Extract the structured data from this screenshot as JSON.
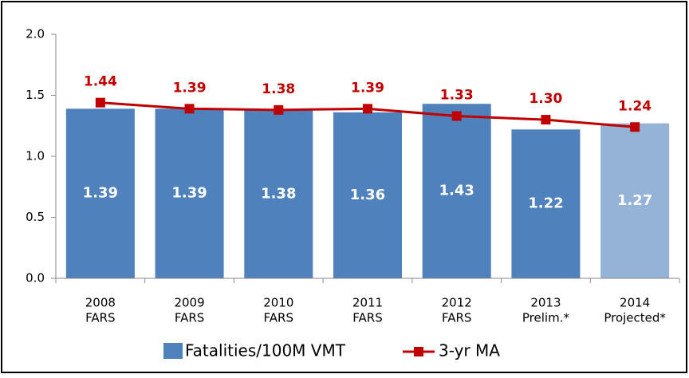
{
  "chart_data": {
    "type": "bar_line",
    "categories": [
      [
        "2008",
        "FARS"
      ],
      [
        "2009",
        "FARS"
      ],
      [
        "2010",
        "FARS"
      ],
      [
        "2011",
        "FARS"
      ],
      [
        "2012",
        "FARS"
      ],
      [
        "2013",
        "Prelim.*"
      ],
      [
        "2014",
        "Projected*"
      ]
    ],
    "series": [
      {
        "name": "Fatalities/100M VMT",
        "type": "bar",
        "color": "#4f81bd",
        "colors": [
          "#4f81bd",
          "#4f81bd",
          "#4f81bd",
          "#4f81bd",
          "#4f81bd",
          "#4f81bd",
          "#95b3d7"
        ],
        "values": [
          1.39,
          1.39,
          1.38,
          1.36,
          1.43,
          1.22,
          1.27
        ],
        "value_labels": [
          "1.39",
          "1.39",
          "1.38",
          "1.36",
          "1.43",
          "1.22",
          "1.27"
        ]
      },
      {
        "name": "3-yr MA",
        "type": "line",
        "color": "#c00000",
        "values": [
          1.44,
          1.39,
          1.38,
          1.39,
          1.33,
          1.3,
          1.24
        ],
        "value_labels": [
          "1.44",
          "1.39",
          "1.38",
          "1.39",
          "1.33",
          "1.30",
          "1.24"
        ]
      }
    ],
    "ylim": [
      0,
      2
    ],
    "yticks": [
      {
        "value": 0,
        "label": "0.0"
      },
      {
        "value": 0.5,
        "label": "0.5"
      },
      {
        "value": 1,
        "label": "1.0"
      },
      {
        "value": 1.5,
        "label": "1.5"
      },
      {
        "value": 2,
        "label": "2.0"
      }
    ],
    "grid": false
  }
}
